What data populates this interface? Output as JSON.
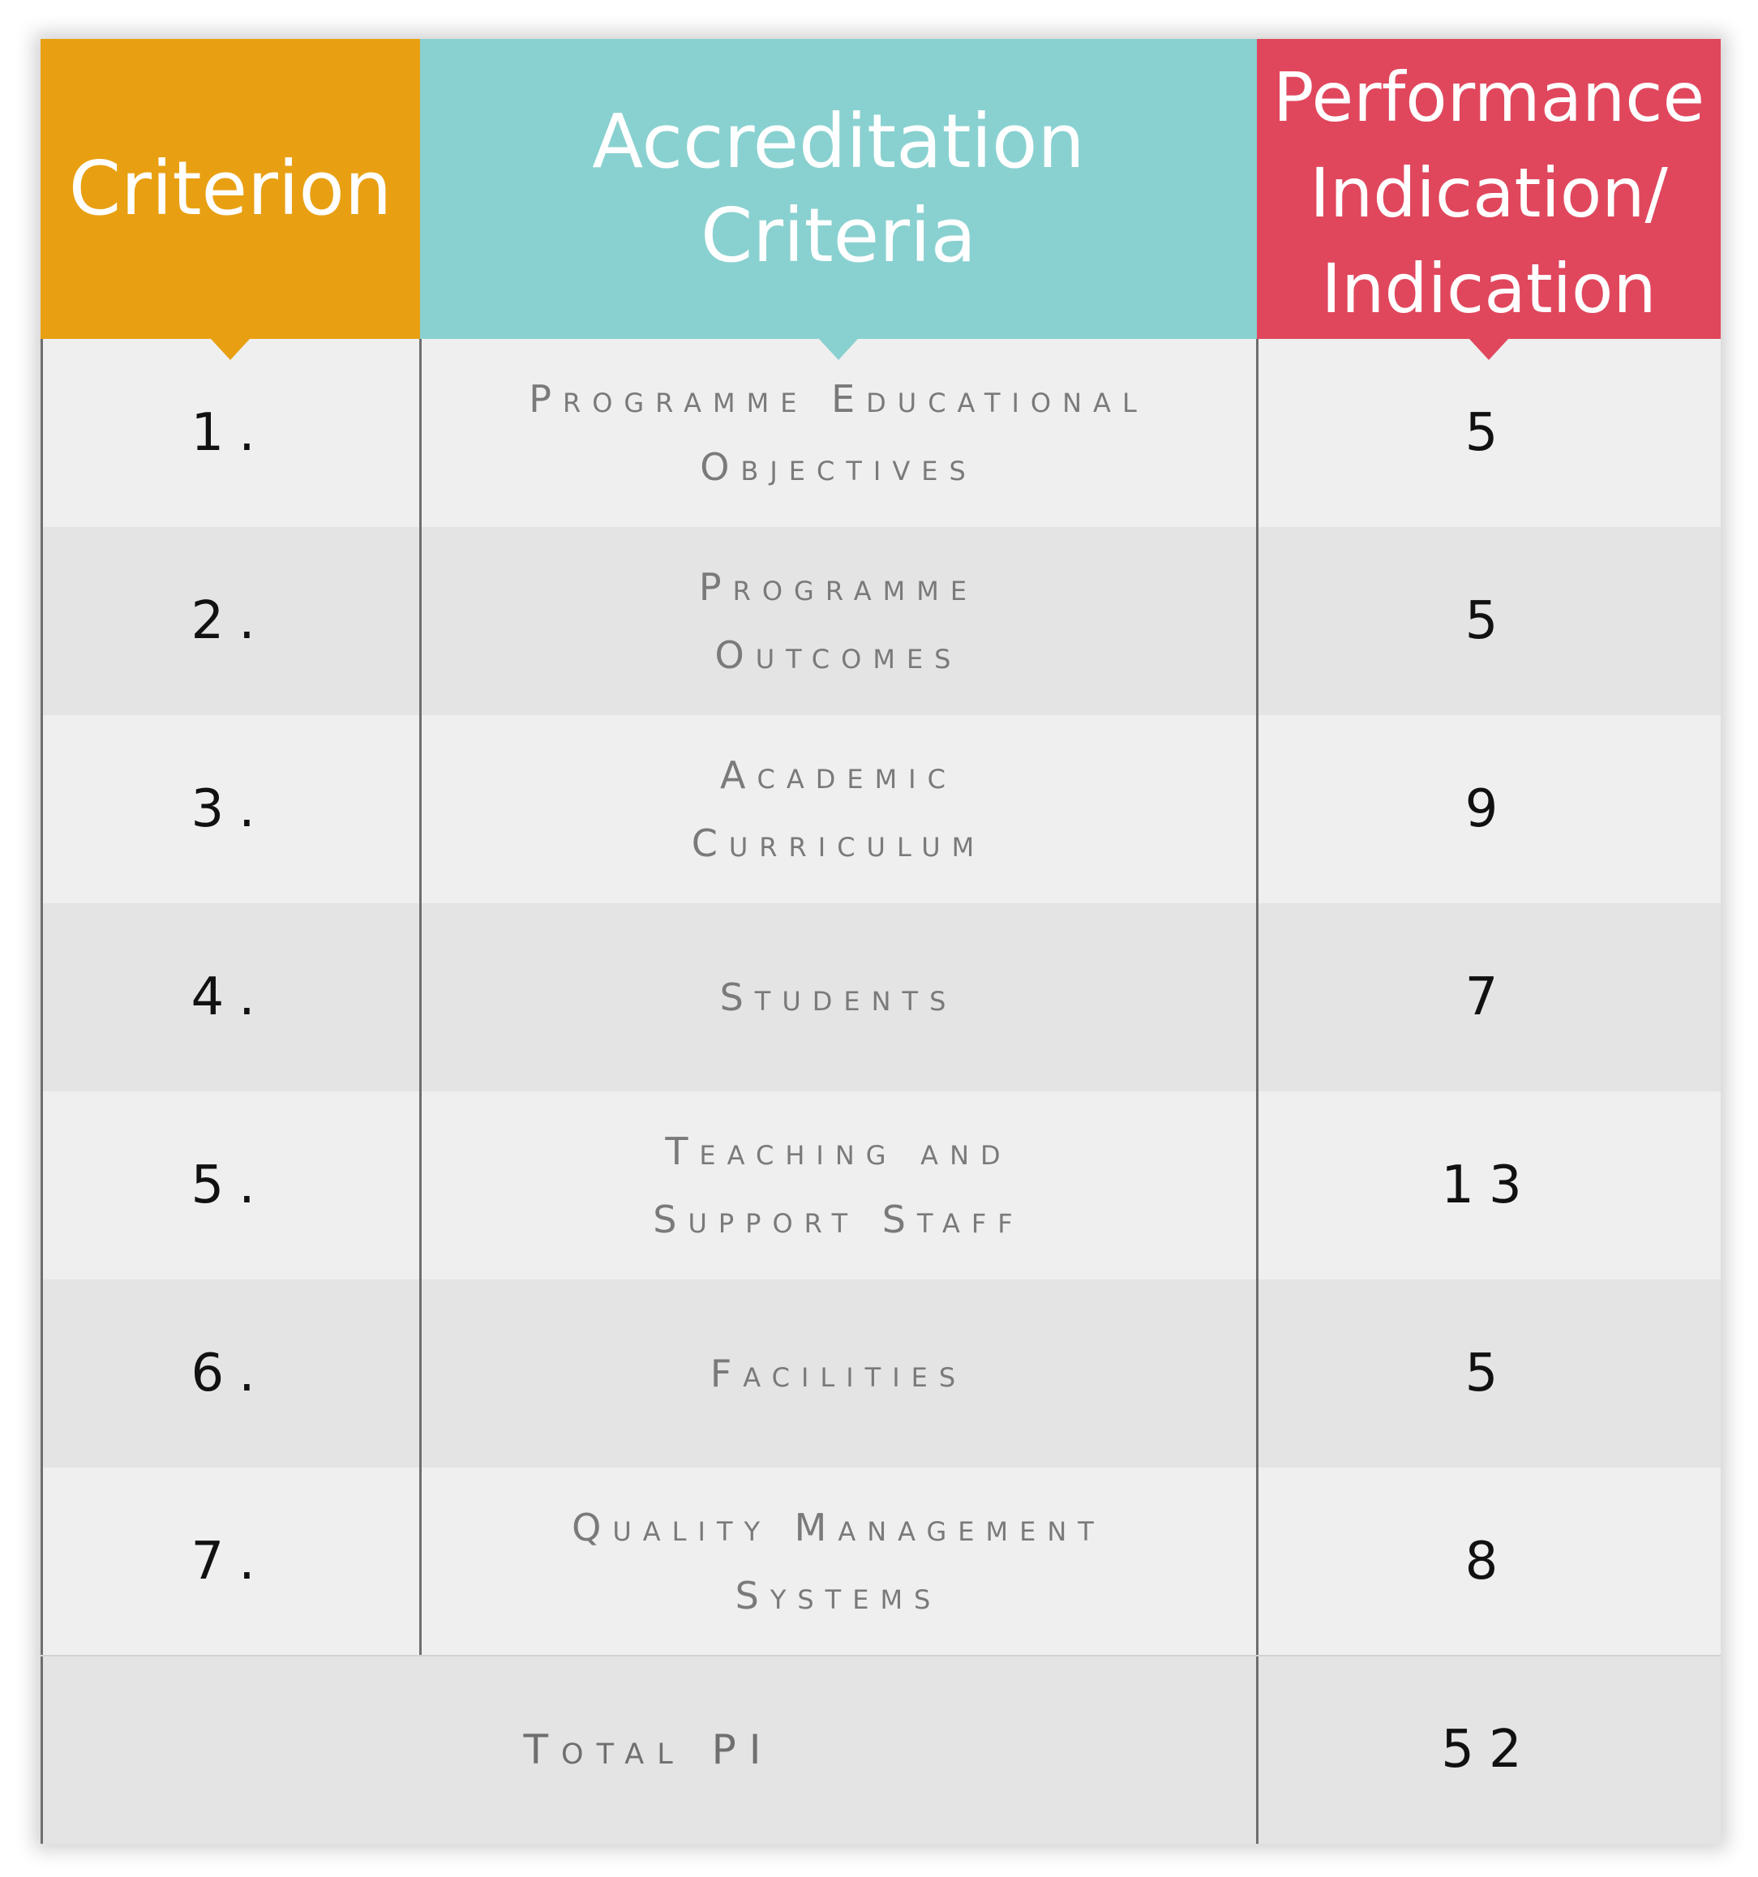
{
  "header": {
    "criterion": "Criterion",
    "accreditation_line1": "Accreditation",
    "accreditation_line2": "Criteria",
    "performance_line1": "Performance",
    "performance_line2": "Indication/",
    "performance_line3": "Indication",
    "colors": {
      "criterion": "#e8a012",
      "accreditation": "#89d1d0",
      "performance": "#e0475d"
    }
  },
  "rows": [
    {
      "num": "1.",
      "name_line1": "Programme Educational",
      "name_line2": "Objectives",
      "pi": "5"
    },
    {
      "num": "2.",
      "name_line1": "Programme",
      "name_line2": "Outcomes",
      "pi": "5"
    },
    {
      "num": "3.",
      "name_line1": "Academic",
      "name_line2": "Curriculum",
      "pi": "9"
    },
    {
      "num": "4.",
      "name_line1": "Students",
      "name_line2": "",
      "pi": "7"
    },
    {
      "num": "5.",
      "name_line1": "Teaching and",
      "name_line2": "Support Staff",
      "pi": "13"
    },
    {
      "num": "6.",
      "name_line1": "Facilities",
      "name_line2": "",
      "pi": "5"
    },
    {
      "num": "7.",
      "name_line1": "Quality Management",
      "name_line2": "Systems",
      "pi": "8"
    }
  ],
  "total": {
    "label": "Total PI",
    "value": "52"
  }
}
